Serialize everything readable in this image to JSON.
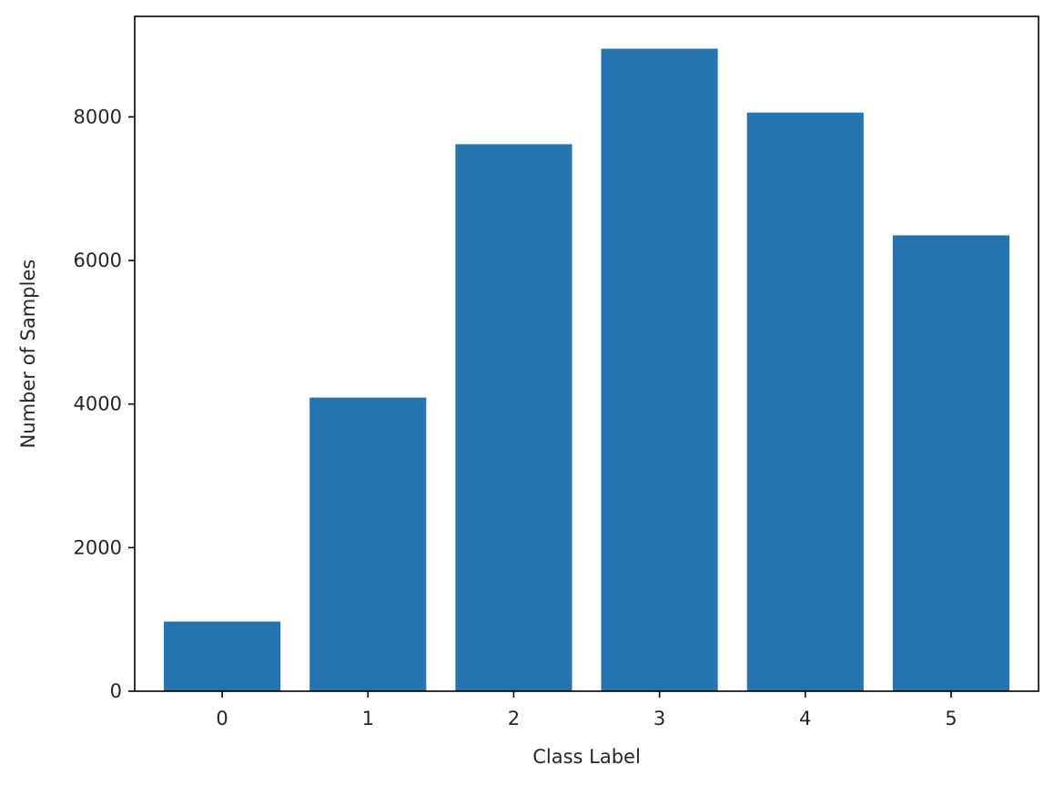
{
  "chart_data": {
    "type": "bar",
    "categories": [
      "0",
      "1",
      "2",
      "3",
      "4",
      "5"
    ],
    "values": [
      970,
      4090,
      7620,
      8950,
      8060,
      6350
    ],
    "title": "",
    "xlabel": "Class Label",
    "ylabel": "Number of Samples",
    "ylim": [
      0,
      9400
    ],
    "yticks": [
      0,
      2000,
      4000,
      6000,
      8000
    ],
    "ytick_labels": [
      "0",
      "2000",
      "4000",
      "6000",
      "8000"
    ],
    "bar_color": "#2574b0",
    "grid": false,
    "legend": "none"
  }
}
